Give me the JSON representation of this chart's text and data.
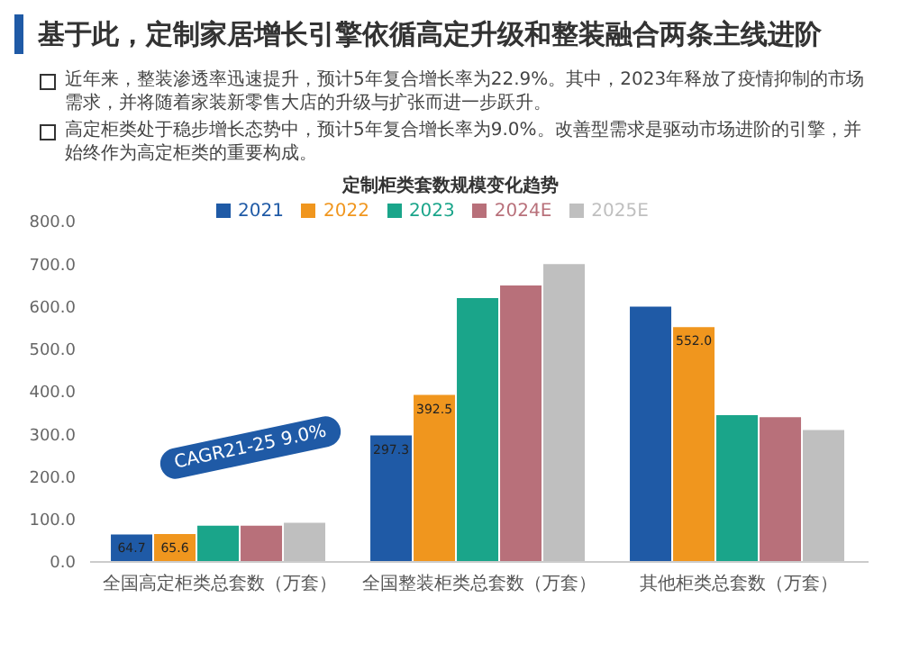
{
  "chart_data": {
    "type": "bar",
    "title": "基于此，定制家居增长引擎依循高定升级和整装融合两条主线进阶",
    "subtitle": "定制柜类套数规模变化趋势",
    "annotations": [
      "近年来，整装渗透率迅速提升，预计5年复合增长率为22.9%。其中，2023年释放了疫情抑制的市场需求，并将随着家装新零售大店的升级与扩张而进一步跃升。",
      "高定柜类处于稳步增长态势中，预计5年复合增长率为9.0%。改善型需求是驱动市场进阶的引擎，并始终作为高定柜类的重要构成。",
      "CAGR21-25 9.0%"
    ],
    "categories": [
      "全国高定柜类总套数（万套）",
      "全国整装柜类总套数（万套）",
      "其他柜类总套数（万套）"
    ],
    "series": [
      {
        "name": "2021",
        "color": "#1f5aa6",
        "values": [
          64.7,
          297.3,
          600
        ],
        "value_labels": [
          "64.7",
          "297.3",
          null
        ]
      },
      {
        "name": "2022",
        "color": "#f0961e",
        "values": [
          65.6,
          392.5,
          552.0
        ],
        "value_labels": [
          "65.6",
          "392.5",
          "552.0"
        ]
      },
      {
        "name": "2023",
        "color": "#1aa58a",
        "values": [
          85,
          620,
          345
        ]
      },
      {
        "name": "2024E",
        "color": "#b8707a",
        "values": [
          85,
          650,
          340
        ]
      },
      {
        "name": "2025E",
        "color": "#bfbfbf",
        "values": [
          92,
          700,
          310
        ]
      }
    ],
    "ylim": [
      0,
      800
    ],
    "yticks": [
      {
        "value": 0,
        "label": "0.0"
      },
      {
        "value": 100,
        "label": "100.0"
      },
      {
        "value": 200,
        "label": "200.0"
      },
      {
        "value": 300,
        "label": "300.0"
      },
      {
        "value": 400,
        "label": "400.0"
      },
      {
        "value": 500,
        "label": "500.0"
      },
      {
        "value": 600,
        "label": "600.0"
      },
      {
        "value": 700,
        "label": "700.0"
      },
      {
        "value": 800,
        "label": "800.0"
      }
    ],
    "legend": "top"
  }
}
